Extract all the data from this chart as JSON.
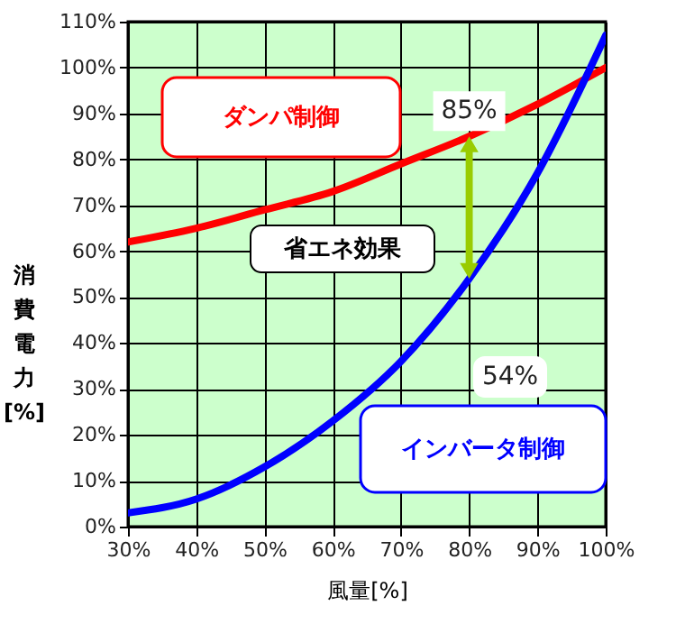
{
  "chart_data": {
    "type": "line",
    "xlabel": "風量[%]",
    "ylabel": "消費電力[%]",
    "x": [
      30,
      40,
      50,
      60,
      70,
      80,
      90,
      100
    ],
    "series": [
      {
        "name": "ダンパ制御",
        "color": "#ff0000",
        "values": [
          62,
          65,
          69,
          73,
          79,
          85,
          92,
          100
        ]
      },
      {
        "name": "インバータ制御",
        "color": "#0000ff",
        "values": [
          3,
          6,
          13,
          23,
          36,
          54,
          77,
          107
        ]
      }
    ],
    "xlim": [
      30,
      100
    ],
    "xticks": [
      {
        "value": 30,
        "label": "30%"
      },
      {
        "value": 40,
        "label": "40%"
      },
      {
        "value": 50,
        "label": "50%"
      },
      {
        "value": 60,
        "label": "60%"
      },
      {
        "value": 70,
        "label": "70%"
      },
      {
        "value": 80,
        "label": "80%"
      },
      {
        "value": 90,
        "label": "90%"
      },
      {
        "value": 100,
        "label": "100%"
      }
    ],
    "ylim": [
      0,
      110
    ],
    "yticks": [
      {
        "value": 0,
        "label": "0%"
      },
      {
        "value": 10,
        "label": "10%"
      },
      {
        "value": 20,
        "label": "20%"
      },
      {
        "value": 30,
        "label": "30%"
      },
      {
        "value": 40,
        "label": "40%"
      },
      {
        "value": 50,
        "label": "50%"
      },
      {
        "value": 60,
        "label": "60%"
      },
      {
        "value": 70,
        "label": "70%"
      },
      {
        "value": 80,
        "label": "80%"
      },
      {
        "value": 90,
        "label": "90%"
      },
      {
        "value": 100,
        "label": "100%"
      },
      {
        "value": 110,
        "label": "110%"
      }
    ],
    "grid": true,
    "marker": "none",
    "line_style": "solid",
    "legend": false,
    "annotations": [
      {
        "text": "85%",
        "x": 80,
        "y": 85
      },
      "54%",
      "省エネ効果"
    ]
  }
}
